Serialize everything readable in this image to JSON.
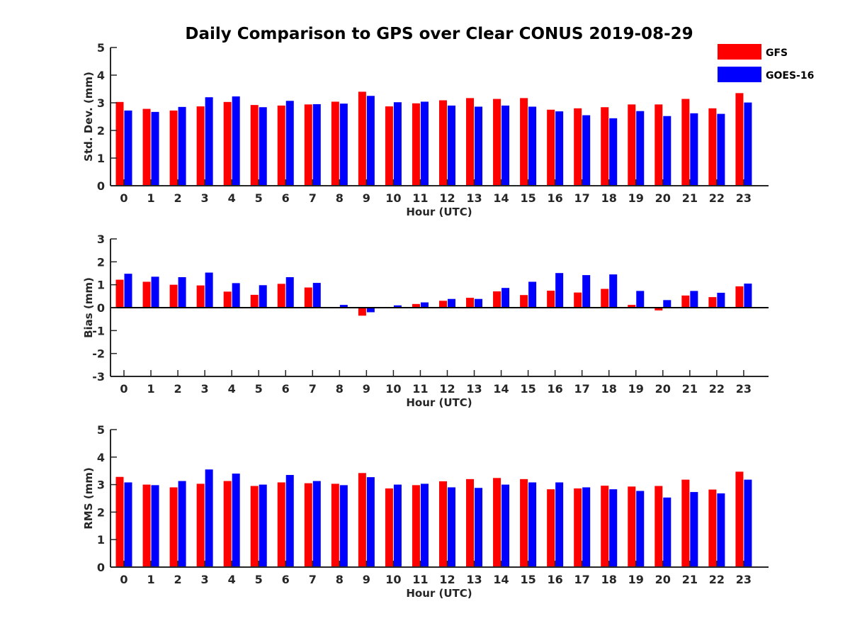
{
  "chart_data": {
    "title": "Daily Comparison to GPS over Clear CONUS 2019-08-29",
    "legend": {
      "placement": "top-right",
      "entries": [
        {
          "name": "GFS",
          "color": "#ff0000"
        },
        {
          "name": "GOES-16",
          "color": "#0000ff"
        }
      ]
    },
    "panels": [
      {
        "type": "bar",
        "ylabel": "Std. Dev. (mm)",
        "xlabel": "Hour (UTC)",
        "ylim": [
          0,
          5
        ],
        "yticks": [
          0,
          1,
          2,
          3,
          4,
          5
        ],
        "categories": [
          "0",
          "1",
          "2",
          "3",
          "4",
          "5",
          "6",
          "7",
          "8",
          "9",
          "10",
          "11",
          "12",
          "13",
          "14",
          "15",
          "16",
          "17",
          "18",
          "19",
          "20",
          "21",
          "22",
          "23"
        ],
        "series": [
          {
            "name": "GFS",
            "color": "#ff0000",
            "values": [
              3.03,
              2.78,
              2.72,
              2.87,
              3.03,
              2.92,
              2.9,
              2.94,
              3.04,
              3.4,
              2.87,
              2.98,
              3.09,
              3.17,
              3.14,
              3.17,
              2.75,
              2.8,
              2.84,
              2.94,
              2.94,
              3.14,
              2.8,
              3.35
            ]
          },
          {
            "name": "GOES-16",
            "color": "#0000ff",
            "values": [
              2.72,
              2.67,
              2.85,
              3.2,
              3.23,
              2.84,
              3.07,
              2.95,
              2.97,
              3.25,
              3.02,
              3.04,
              2.9,
              2.86,
              2.9,
              2.86,
              2.69,
              2.55,
              2.44,
              2.7,
              2.52,
              2.62,
              2.6,
              3.01
            ]
          }
        ]
      },
      {
        "type": "bar",
        "ylabel": "Bias (mm)",
        "xlabel": "Hour (UTC)",
        "ylim": [
          -3,
          3
        ],
        "yticks": [
          -3,
          -2,
          -1,
          0,
          1,
          2,
          3
        ],
        "categories": [
          "0",
          "1",
          "2",
          "3",
          "4",
          "5",
          "6",
          "7",
          "8",
          "9",
          "10",
          "11",
          "12",
          "13",
          "14",
          "15",
          "16",
          "17",
          "18",
          "19",
          "20",
          "21",
          "22",
          "23"
        ],
        "series": [
          {
            "name": "GFS",
            "color": "#ff0000",
            "values": [
              1.22,
              1.13,
              1.0,
              0.97,
              0.7,
              0.56,
              1.04,
              0.88,
              0.0,
              -0.35,
              0.0,
              0.16,
              0.3,
              0.43,
              0.71,
              0.55,
              0.74,
              0.66,
              0.82,
              0.12,
              -0.12,
              0.53,
              0.46,
              0.93
            ]
          },
          {
            "name": "GOES-16",
            "color": "#0000ff",
            "values": [
              1.48,
              1.35,
              1.33,
              1.53,
              1.07,
              0.98,
              1.33,
              1.08,
              0.12,
              -0.2,
              0.1,
              0.23,
              0.38,
              0.38,
              0.86,
              1.13,
              1.51,
              1.42,
              1.45,
              0.73,
              0.33,
              0.73,
              0.65,
              1.05
            ]
          }
        ]
      },
      {
        "type": "bar",
        "ylabel": "RMS (mm)",
        "xlabel": "Hour (UTC)",
        "ylim": [
          0,
          5
        ],
        "yticks": [
          0,
          1,
          2,
          3,
          4,
          5
        ],
        "categories": [
          "0",
          "1",
          "2",
          "3",
          "4",
          "5",
          "6",
          "7",
          "8",
          "9",
          "10",
          "11",
          "12",
          "13",
          "14",
          "15",
          "16",
          "17",
          "18",
          "19",
          "20",
          "21",
          "22",
          "23"
        ],
        "series": [
          {
            "name": "GFS",
            "color": "#ff0000",
            "values": [
              3.28,
              3.0,
              2.9,
              3.03,
              3.13,
              2.95,
              3.08,
              3.05,
              3.03,
              3.42,
              2.86,
              2.98,
              3.12,
              3.2,
              3.24,
              3.2,
              2.83,
              2.86,
              2.96,
              2.93,
              2.95,
              3.18,
              2.82,
              3.47
            ]
          },
          {
            "name": "GOES-16",
            "color": "#0000ff",
            "values": [
              3.08,
              2.98,
              3.13,
              3.55,
              3.4,
              3.0,
              3.35,
              3.13,
              2.98,
              3.27,
              3.0,
              3.03,
              2.9,
              2.88,
              3.0,
              3.08,
              3.08,
              2.9,
              2.83,
              2.77,
              2.53,
              2.73,
              2.68,
              3.18
            ]
          }
        ]
      }
    ]
  }
}
